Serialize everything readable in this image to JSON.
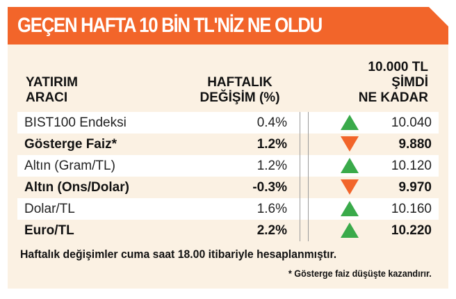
{
  "title": "GEÇEN HAFTA 10 BİN TL'NİZ NE OLDU",
  "headers": {
    "instrument": "YATIRIM\nARACI",
    "weekly_change": "HAFTALIK\nDEĞİŞİM (%)",
    "now_value": "10.000 TL\nŞİMDİ\nNE KADAR"
  },
  "colors": {
    "accent": "#f2652a",
    "up": "#3aaa4a",
    "down": "#f2652a"
  },
  "rows": [
    {
      "name": "BIST100 Endeksi",
      "change": "0.4%",
      "direction": "up",
      "value": "10.040",
      "bold": false
    },
    {
      "name": "Gösterge Faiz*",
      "change": "1.2%",
      "direction": "down",
      "value": "9.880",
      "bold": true
    },
    {
      "name": "Altın (Gram/TL)",
      "change": "1.2%",
      "direction": "up",
      "value": "10.120",
      "bold": false
    },
    {
      "name": "Altın (Ons/Dolar)",
      "change": "-0.3%",
      "direction": "down",
      "value": "9.970",
      "bold": true
    },
    {
      "name": "Dolar/TL",
      "change": "1.6%",
      "direction": "up",
      "value": "10.160",
      "bold": false
    },
    {
      "name": "Euro/TL",
      "change": "2.2%",
      "direction": "up",
      "value": "10.220",
      "bold": true
    }
  ],
  "footnote": "Haftalık değişimler cuma saat 18.00 itibariyle hesaplanmıştır.",
  "subnote": "* Gösterge faiz düşüşte kazandırır."
}
